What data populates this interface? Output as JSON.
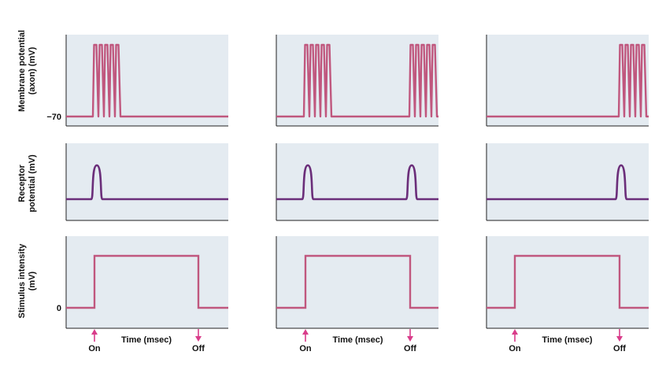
{
  "rows": [
    {
      "ylabel_lines": [
        "Membrane potential",
        "(axon) (mV)"
      ],
      "tick": "−70"
    },
    {
      "ylabel_lines": [
        "Receptor",
        "potential (mV)"
      ],
      "tick": ""
    },
    {
      "ylabel_lines": [
        "Stimulus intensity",
        "(mV)"
      ],
      "tick": "0"
    }
  ],
  "xlabel": "Time (msec)",
  "on_label": "On",
  "off_label": "Off",
  "colors": {
    "panel_bg": "#e4ebf1",
    "spike": "#c0577e",
    "receptor": "#6b2e7a",
    "stimulus": "#c0577e",
    "arrow": "#d93c8a",
    "axis": "#222222"
  },
  "columns": [
    {
      "spikes_at": [
        "on"
      ],
      "receptor_peaks_at": [
        "on"
      ]
    },
    {
      "spikes_at": [
        "on",
        "off"
      ],
      "receptor_peaks_at": [
        "on",
        "off"
      ]
    },
    {
      "spikes_at": [
        "off"
      ],
      "receptor_peaks_at": [
        "off"
      ]
    }
  ],
  "spikes_per_burst": 5
}
